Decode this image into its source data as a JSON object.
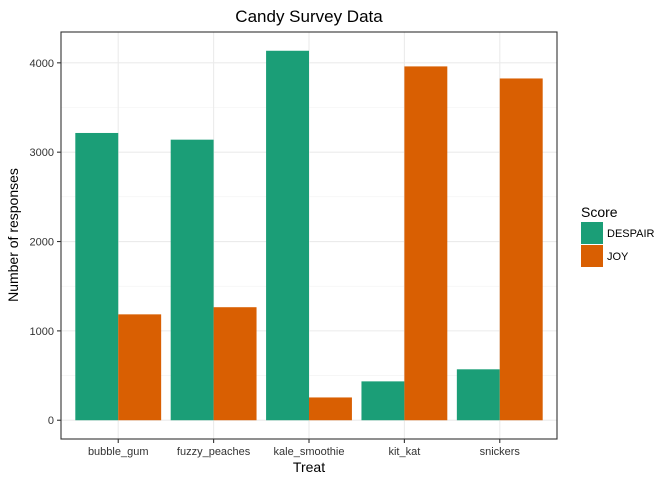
{
  "chart_data": {
    "type": "bar",
    "title": "Candy Survey Data",
    "xlabel": "Treat",
    "ylabel": "Number of responses",
    "categories": [
      "bubble_gum",
      "fuzzy_peaches",
      "kale_smoothie",
      "kit_kat",
      "snickers"
    ],
    "series": [
      {
        "name": "DESPAIR",
        "color": "#1b9e77",
        "values": [
          3215,
          3140,
          4135,
          435,
          570
        ]
      },
      {
        "name": "JOY",
        "color": "#d95f02",
        "values": [
          1185,
          1265,
          255,
          3960,
          3825
        ]
      }
    ],
    "ylim": [
      -210,
      4345
    ],
    "yticks": [
      0,
      1000,
      2000,
      3000,
      4000
    ],
    "ytick_labels": [
      "0",
      "1000",
      "2000",
      "3000",
      "4000"
    ],
    "legend": {
      "title": "Score",
      "position": "right"
    },
    "grid": true
  }
}
